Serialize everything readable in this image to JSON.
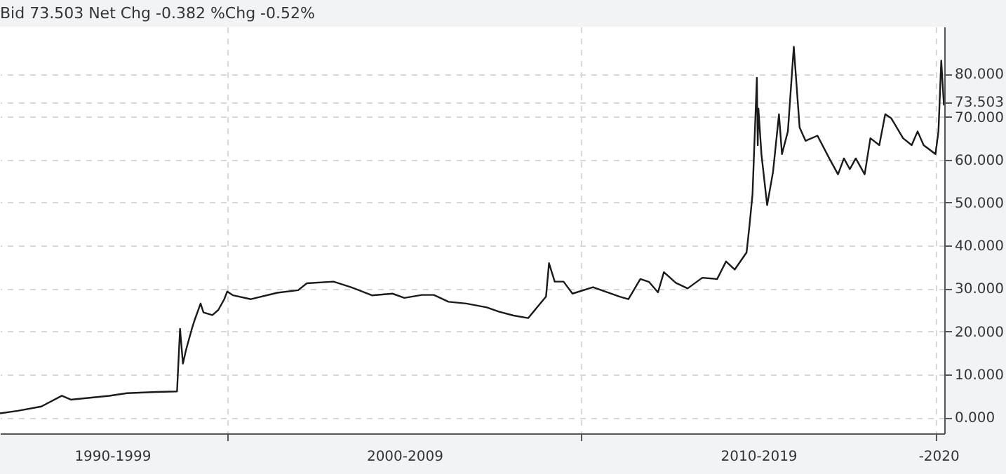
{
  "chart_data": {
    "type": "line",
    "title": "Bid 73.503 Net Chg -0.382 %Chg -0.52%",
    "x": [
      "1993-08",
      "1994-02",
      "1994-10",
      "1995-05",
      "1995-08",
      "1996-09",
      "1997-03",
      "1998-01",
      "1998-08",
      "1998-09",
      "1998-10",
      "1998-11",
      "1999-01",
      "1999-02",
      "1999-04",
      "1999-05",
      "1999-08",
      "1999-10",
      "1999-12",
      "2000-01",
      "2000-03",
      "2000-09",
      "2001-06",
      "2002-01",
      "2002-04",
      "2003-01",
      "2003-07",
      "2004-02",
      "2004-09",
      "2005-01",
      "2005-07",
      "2005-11",
      "2006-04",
      "2006-10",
      "2007-05",
      "2007-09",
      "2008-02",
      "2008-07",
      "2009-01",
      "2009-02",
      "2009-04",
      "2009-07",
      "2009-10",
      "2010-05",
      "2011-02",
      "2011-05",
      "2011-09",
      "2011-12",
      "2012-03",
      "2012-05",
      "2012-09",
      "2013-01",
      "2013-06",
      "2013-11",
      "2014-02",
      "2014-05",
      "2014-09",
      "2014-10",
      "2014-11",
      "2014-12-16",
      "2014-12-25",
      "2015-01",
      "2015-02",
      "2015-04",
      "2015-06",
      "2015-08",
      "2015-09",
      "2015-11",
      "2016-01",
      "2016-03",
      "2016-05",
      "2016-09",
      "2017-01",
      "2017-04",
      "2017-06",
      "2017-08",
      "2017-10",
      "2018-01",
      "2018-03",
      "2018-06",
      "2018-08",
      "2018-10",
      "2019-02",
      "2019-05",
      "2019-07",
      "2019-09",
      "2020-01",
      "2020-02",
      "2020-03",
      "2020-03-28",
      "2020-04"
    ],
    "series": [
      {
        "color": "#1a1a1a",
        "values": [
          0.9,
          1.5,
          2.5,
          5.0,
          4.1,
          5.0,
          5.6,
          5.9,
          6.0,
          20.6,
          12.5,
          15.6,
          20.6,
          22.8,
          26.5,
          24.4,
          23.8,
          25.0,
          27.5,
          29.3,
          28.4,
          27.5,
          29.0,
          29.6,
          31.2,
          31.6,
          30.3,
          28.4,
          28.8,
          27.8,
          28.5,
          28.5,
          26.9,
          26.5,
          25.6,
          24.6,
          23.7,
          23.1,
          28.1,
          35.9,
          31.6,
          31.6,
          28.8,
          30.3,
          28.1,
          27.5,
          32.2,
          31.5,
          29.1,
          33.8,
          31.3,
          30.0,
          32.5,
          32.2,
          36.3,
          34.4,
          38.4,
          44.7,
          51.9,
          79.1,
          63.4,
          71.9,
          61.3,
          49.4,
          57.2,
          70.6,
          61.3,
          66.6,
          86.3,
          67.5,
          64.4,
          65.6,
          60.3,
          56.6,
          60.3,
          57.8,
          60.3,
          56.6,
          65.0,
          63.4,
          70.6,
          69.7,
          65.0,
          63.4,
          66.6,
          63.4,
          61.3,
          66.6,
          83.1,
          72.8,
          73.5
        ]
      }
    ],
    "xlim": [
      "1993-08",
      "2020-04"
    ],
    "xticks": [
      {
        "value": "2000",
        "label": null
      },
      {
        "value": "2010",
        "label": null
      },
      {
        "value": "2020",
        "label": null
      },
      {
        "value": "1996-10",
        "label": "1990-1999"
      },
      {
        "value": "2005-01",
        "label": "2000-2009"
      },
      {
        "value": "2015",
        "label": "2010-2019"
      },
      {
        "value": "2020-02",
        "label": "-2020"
      }
    ],
    "ylim": [
      -3.75,
      91
    ],
    "yticks": [
      {
        "value": 0,
        "label": "0.000"
      },
      {
        "value": 10,
        "label": "10.000"
      },
      {
        "value": 20,
        "label": "20.000"
      },
      {
        "value": 30,
        "label": "30.000"
      },
      {
        "value": 40,
        "label": "40.000"
      },
      {
        "value": 50,
        "label": "50.000"
      },
      {
        "value": 60,
        "label": "60.000"
      },
      {
        "value": 70,
        "label": "70.000"
      },
      {
        "value": 73.503,
        "label": "73.503"
      },
      {
        "value": 80,
        "label": "80.000"
      }
    ],
    "grid": true,
    "line_style": "solid",
    "marker": "none",
    "legend": false
  }
}
